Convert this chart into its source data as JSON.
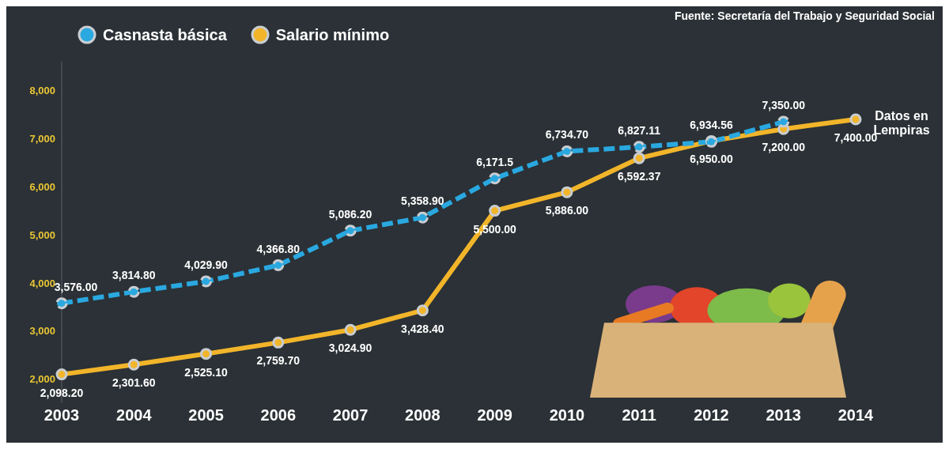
{
  "chart_data": {
    "type": "line",
    "categories": [
      "2003",
      "2004",
      "2005",
      "2006",
      "2007",
      "2008",
      "2009",
      "2010",
      "2011",
      "2012",
      "2013",
      "2014"
    ],
    "series": [
      {
        "name": "Casnasta básica",
        "color": "#2aa8e0",
        "line_style": "dashed",
        "values": [
          3576.0,
          3814.8,
          4029.9,
          4366.8,
          5086.2,
          5358.9,
          6171.5,
          6734.7,
          6827.11,
          6934.56,
          7350.0,
          null
        ],
        "value_labels": [
          "3,576.00",
          "3,814.80",
          "4,029.90",
          "4,366.80",
          "5,086.20",
          "5,358.90",
          "6,171.5",
          "6,734.70",
          "6,827.11",
          "6,934.56",
          "7,350.00",
          null
        ]
      },
      {
        "name": "Salario mínimo",
        "color": "#f2b52a",
        "line_style": "solid",
        "values": [
          2098.2,
          2301.6,
          2525.1,
          2759.7,
          3024.9,
          3428.4,
          5500.0,
          5886.0,
          6592.37,
          6950.0,
          7200.0,
          7400.0
        ],
        "value_labels": [
          "2,098.20",
          "2,301.60",
          "2,525.10",
          "2,759.70",
          "3,024.90",
          "3,428.40",
          "5,500.00",
          "5,886.00",
          "6,592.37",
          "6,950.00",
          "7,200.00",
          "7,400.00"
        ]
      }
    ],
    "ylim": [
      1500,
      8600
    ],
    "yticks": [
      {
        "value": 2000,
        "label": "2,000"
      },
      {
        "value": 3000,
        "label": "3,000"
      },
      {
        "value": 4000,
        "label": "4,000"
      },
      {
        "value": 5000,
        "label": "5,000"
      },
      {
        "value": 6000,
        "label": "6,000"
      },
      {
        "value": 7000,
        "label": "7,000"
      },
      {
        "value": 8000,
        "label": "8,000"
      }
    ],
    "marker": "circle",
    "legend": "top left",
    "annotations": [
      "Fuente: Secretaría del Trabajo y Seguridad Social",
      "Datos en Lempiras"
    ]
  }
}
